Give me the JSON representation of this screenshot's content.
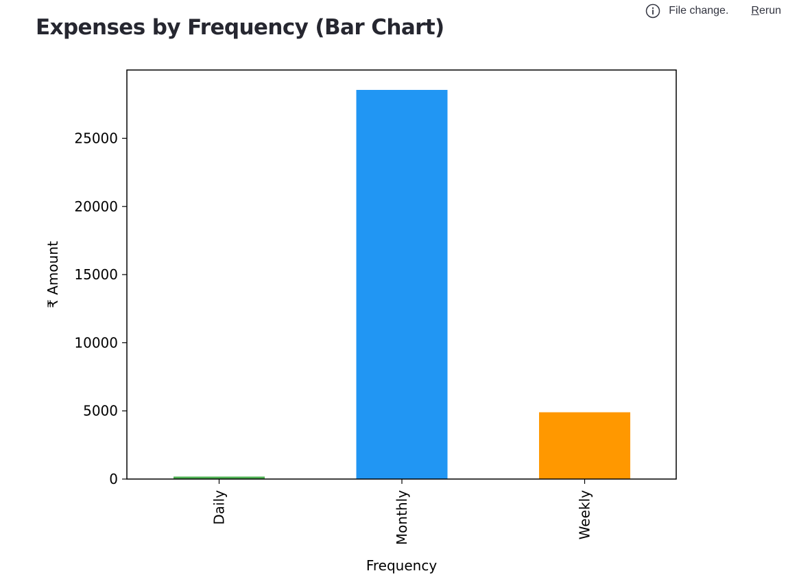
{
  "page": {
    "title": "Expenses by Frequency (Bar Chart)"
  },
  "status": {
    "message": "File change.",
    "rerun_first": "R",
    "rerun_rest": "erun",
    "icon": "info-icon"
  },
  "chart_data": {
    "type": "bar",
    "title": "",
    "xlabel": "Frequency",
    "ylabel": "₹ Amount",
    "categories": [
      "Daily",
      "Monthly",
      "Weekly"
    ],
    "values": [
      180,
      28550,
      4900
    ],
    "colors": [
      "#4caf50",
      "#2196f3",
      "#ff9800"
    ],
    "ylim": [
      0,
      30000
    ],
    "yticks": [
      0,
      5000,
      10000,
      15000,
      20000,
      25000
    ],
    "grid": false,
    "legend": "none"
  }
}
